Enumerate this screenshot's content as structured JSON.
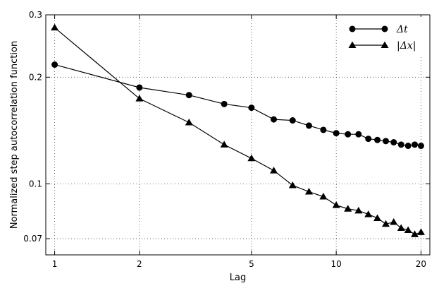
{
  "chart_data": {
    "type": "line",
    "xscale": "log",
    "yscale": "log",
    "xlabel": "Lag",
    "ylabel": "Normalized step autocorrelation function",
    "xlim": [
      0.93,
      21.5
    ],
    "ylim": [
      0.063,
      0.3
    ],
    "x_ticks": [
      1,
      2,
      5,
      10,
      20
    ],
    "x_tick_labels": [
      "1",
      "2",
      "5",
      "10",
      "20"
    ],
    "y_ticks": [
      0.07,
      0.1,
      0.2,
      0.3
    ],
    "y_tick_labels": [
      "0.07",
      "0.1",
      "0.2",
      "0.3"
    ],
    "grid": true,
    "legend_position": "top-right",
    "series": [
      {
        "name": "Δt",
        "marker": "circle",
        "color": "#000000",
        "x": [
          1,
          2,
          3,
          4,
          5,
          6,
          7,
          8,
          9,
          10,
          11,
          12,
          13,
          14,
          15,
          16,
          17,
          18,
          19,
          20
        ],
        "y": [
          0.217,
          0.187,
          0.178,
          0.168,
          0.164,
          0.152,
          0.151,
          0.146,
          0.142,
          0.139,
          0.138,
          0.138,
          0.134,
          0.133,
          0.132,
          0.131,
          0.129,
          0.128,
          0.129,
          0.128
        ]
      },
      {
        "name": "|Δx|",
        "marker": "triangle",
        "color": "#000000",
        "x": [
          1,
          2,
          3,
          4,
          5,
          6,
          7,
          8,
          9,
          10,
          11,
          12,
          13,
          14,
          15,
          16,
          17,
          18,
          19,
          20
        ],
        "y": [
          0.276,
          0.174,
          0.149,
          0.129,
          0.118,
          0.109,
          0.099,
          0.095,
          0.092,
          0.087,
          0.085,
          0.084,
          0.082,
          0.08,
          0.077,
          0.078,
          0.075,
          0.074,
          0.072,
          0.073
        ]
      }
    ]
  }
}
